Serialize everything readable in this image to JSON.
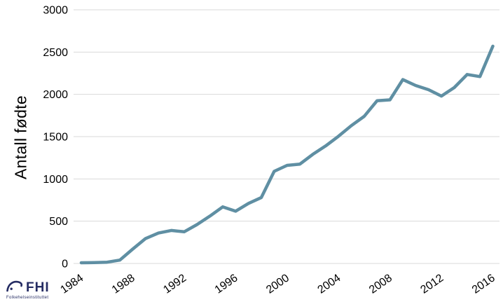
{
  "chart_data": {
    "type": "line",
    "title": "",
    "xlabel": "",
    "ylabel": "Antall fødte",
    "x": [
      1984,
      1985,
      1986,
      1987,
      1988,
      1989,
      1990,
      1991,
      1992,
      1993,
      1994,
      1995,
      1996,
      1997,
      1998,
      1999,
      2000,
      2001,
      2002,
      2003,
      2004,
      2005,
      2006,
      2007,
      2008,
      2009,
      2010,
      2011,
      2012,
      2013,
      2014,
      2015,
      2016
    ],
    "series": [
      {
        "name": "Antall fødte",
        "color": "#5f8fa3",
        "values": [
          8,
          10,
          15,
          40,
          170,
          295,
          360,
          390,
          375,
          460,
          560,
          670,
          618,
          710,
          780,
          1090,
          1160,
          1175,
          1290,
          1390,
          1505,
          1630,
          1740,
          1925,
          1935,
          2175,
          2105,
          2055,
          1980,
          2080,
          2235,
          2210,
          2570
        ]
      }
    ],
    "ylim": [
      0,
      3000
    ],
    "yticks": [
      0,
      500,
      1000,
      1500,
      2000,
      2500,
      3000
    ],
    "xticks": [
      1984,
      1988,
      1992,
      1996,
      2000,
      2004,
      2008,
      2012,
      2016
    ],
    "grid": "horizontal",
    "grid_color": "#d9d9d9",
    "legend": "none",
    "x_tick_rotation_deg": -35
  },
  "logo": {
    "abbr": "FHI",
    "name": "Folkehelseinstituttet",
    "color": "#252c63"
  }
}
